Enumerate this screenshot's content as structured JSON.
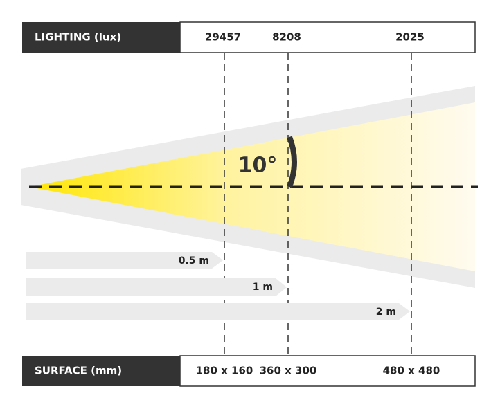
{
  "lighting": {
    "label": "LIGHTING (lux)",
    "values": [
      "29457",
      "8208",
      "2025"
    ]
  },
  "angle": "10°",
  "distances": [
    "0.5 m",
    "1 m",
    "2 m"
  ],
  "surface": {
    "label": "SURFACE (mm)",
    "values": [
      "180 x 160",
      "360 x 300",
      "480 x 480"
    ]
  }
}
